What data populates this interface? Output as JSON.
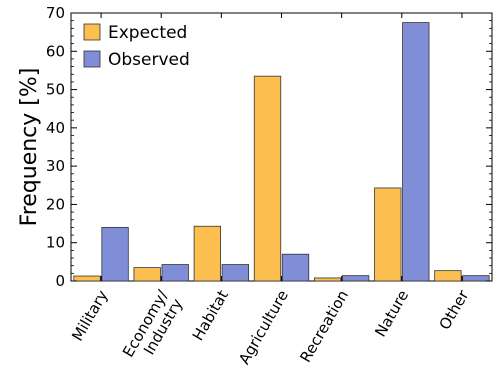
{
  "chart_data": {
    "type": "bar",
    "title": "",
    "xlabel": "",
    "ylabel": "Frequency [%]",
    "ylim": [
      0,
      70
    ],
    "yticks": [
      0,
      10,
      20,
      30,
      40,
      50,
      60,
      70
    ],
    "grid": false,
    "legend_position": "top-left",
    "categories": [
      "Military",
      "Economy/\nIndustry",
      "Habitat",
      "Agriculture",
      "Recreation",
      "Nature",
      "Other"
    ],
    "series": [
      {
        "name": "Expected",
        "color": "#fdbf4f",
        "values": [
          1.3,
          3.5,
          14.3,
          53.5,
          0.8,
          24.3,
          2.7
        ]
      },
      {
        "name": "Observed",
        "color": "#7f8ed6",
        "values": [
          14.0,
          4.3,
          4.3,
          7.0,
          1.4,
          67.5,
          1.4
        ]
      }
    ]
  }
}
